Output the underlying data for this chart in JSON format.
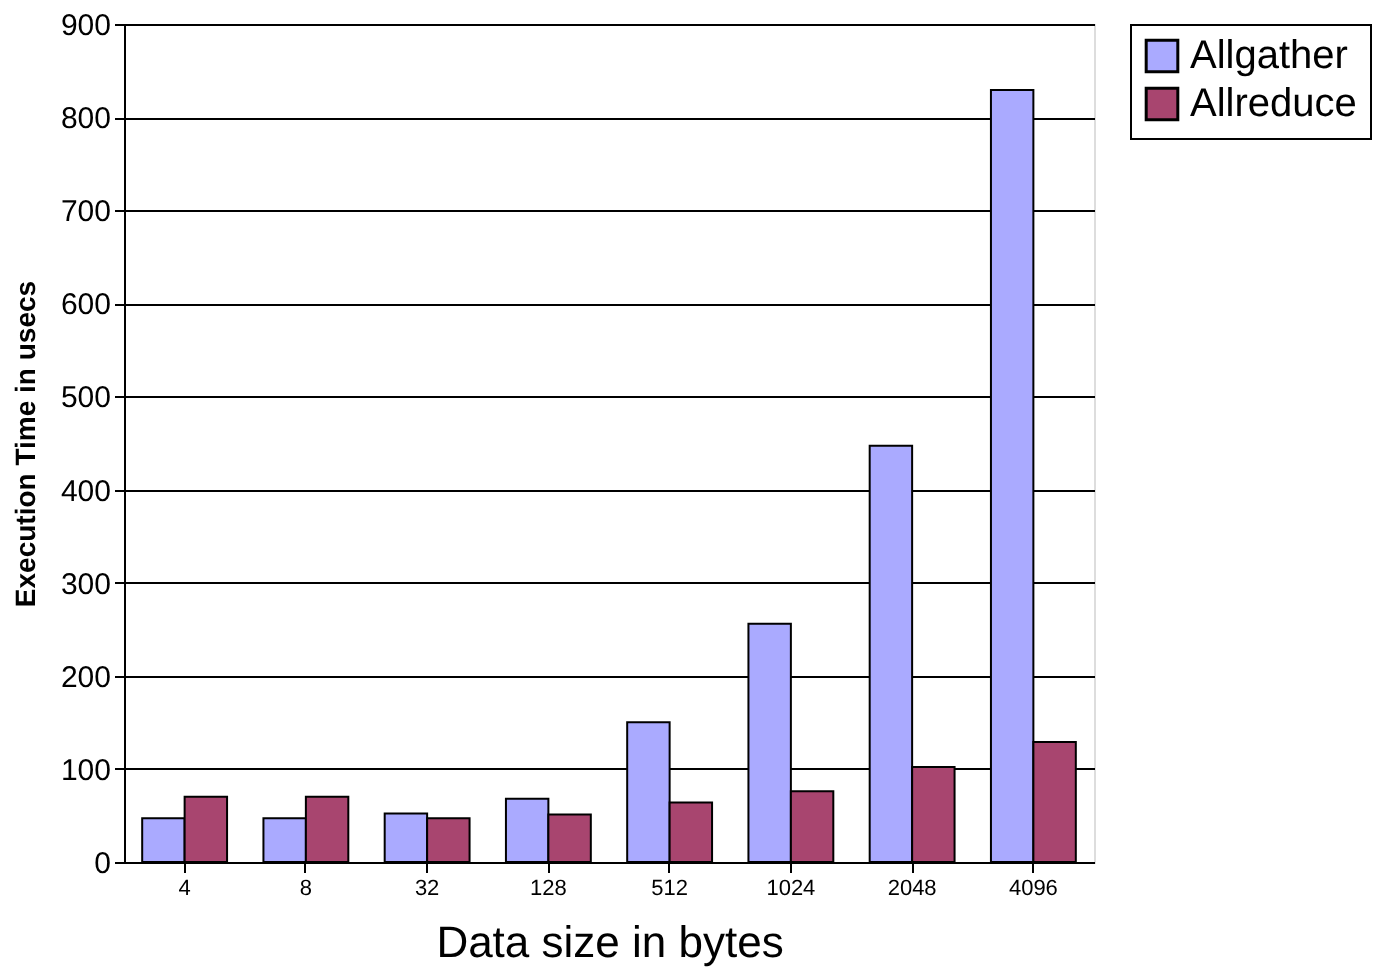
{
  "chart_data": {
    "type": "bar",
    "xlabel": "Data size in bytes",
    "ylabel": "Execution Time in usecs",
    "categories": [
      "4",
      "8",
      "32",
      "128",
      "512",
      "1024",
      "2048",
      "4096"
    ],
    "series": [
      {
        "name": "Allgather",
        "color": "#aaaaff",
        "values": [
          47,
          47,
          52,
          68,
          150,
          256,
          447,
          829
        ]
      },
      {
        "name": "Allreduce",
        "color": "#a8456f",
        "values": [
          70,
          70,
          47,
          51,
          64,
          76,
          102,
          129
        ]
      }
    ],
    "ylim": [
      0,
      900
    ],
    "yticks": [
      0,
      100,
      200,
      300,
      400,
      500,
      600,
      700,
      800,
      900
    ],
    "grid": "y",
    "legend": "right"
  }
}
